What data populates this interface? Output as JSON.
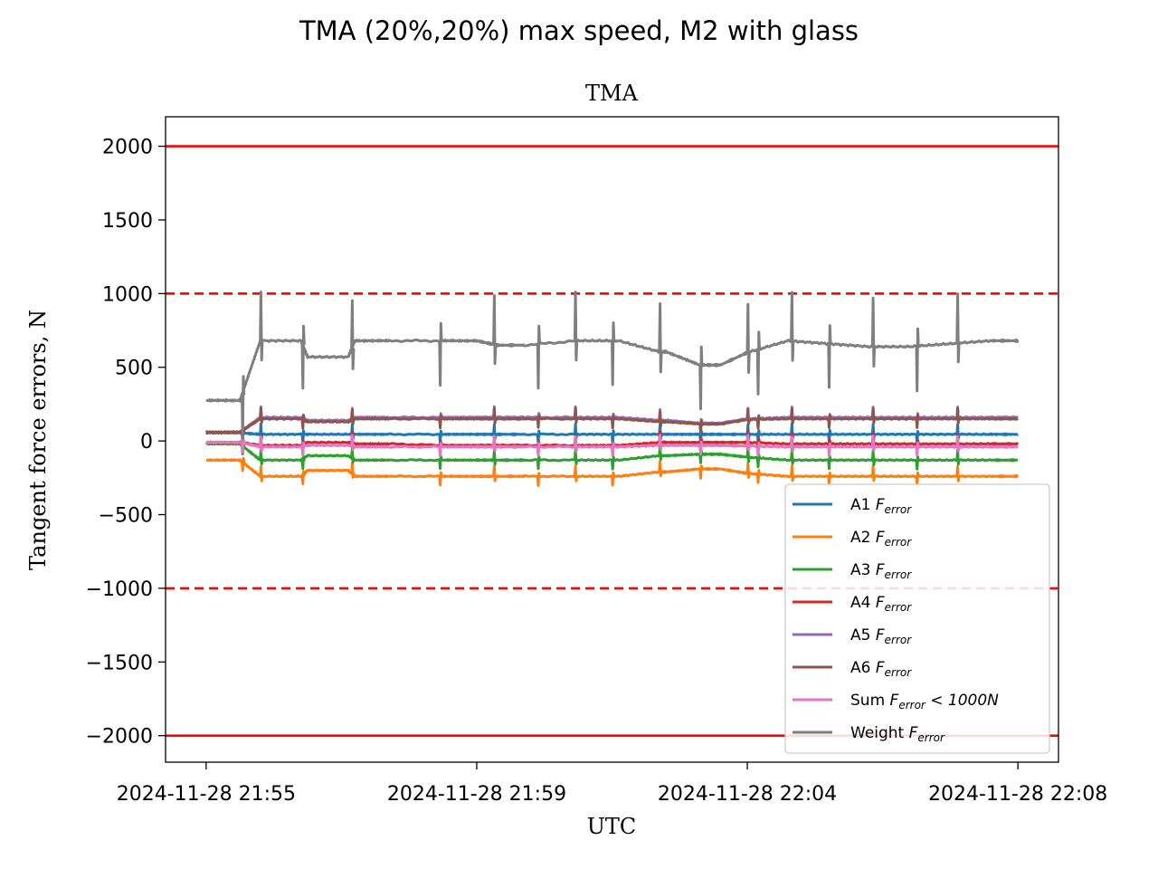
{
  "chart_data": {
    "type": "line",
    "suptitle": "TMA (20%,20%) max speed, M2 with glass",
    "title": "TMA",
    "xlabel": "UTC",
    "ylabel": "Tangent force errors, N",
    "ylim": [
      -2180,
      2200
    ],
    "xlim_minutes": [
      -0.6,
      12.6
    ],
    "yticks": [
      2000,
      1500,
      1000,
      500,
      0,
      -500,
      -1000,
      -1500,
      -2000
    ],
    "ytick_labels": [
      "2000",
      "1500",
      "1000",
      "500",
      "0",
      "−500",
      "−1000",
      "−1500",
      "−2000"
    ],
    "xticks": [
      {
        "label": "2024-11-28 21:55",
        "minute": 0
      },
      {
        "label": "2024-11-28 21:59",
        "minute": 4
      },
      {
        "label": "2024-11-28 22:04",
        "minute": 8
      },
      {
        "label": "2024-11-28 22:08",
        "minute": 12
      }
    ],
    "grid": false,
    "legend_position": "lower right",
    "reference_lines": [
      {
        "y": 2000,
        "color": "#ff0000",
        "style": "solid"
      },
      {
        "y": -2000,
        "color": "#ff0000",
        "style": "solid"
      },
      {
        "y": 1000,
        "color": "#ff0000",
        "style": "dashed"
      },
      {
        "y": -1000,
        "color": "#ff0000",
        "style": "dashed"
      }
    ],
    "x_minutes": [
      0,
      0.5,
      0.8,
      1.4,
      1.5,
      2.1,
      2.2,
      2.7,
      3.5,
      4.0,
      4.3,
      4.7,
      5.5,
      6.1,
      6.7,
      6.8,
      7.3,
      7.6,
      8.0,
      8.6,
      9.2,
      9.8,
      10.4,
      11.0,
      11.6,
      12.0
    ],
    "series": [
      {
        "name": "A1",
        "name_sub": "error",
        "color": "#1f77b4",
        "values": [
          55,
          55,
          45,
          45,
          45,
          45,
          45,
          45,
          45,
          45,
          45,
          45,
          45,
          45,
          45,
          45,
          45,
          45,
          45,
          45,
          45,
          45,
          45,
          45,
          45,
          45
        ]
      },
      {
        "name": "A2",
        "name_sub": "error",
        "color": "#ff7f0e",
        "values": [
          -130,
          -130,
          -240,
          -240,
          -200,
          -200,
          -240,
          -240,
          -240,
          -240,
          -240,
          -240,
          -240,
          -240,
          -210,
          -210,
          -190,
          -190,
          -220,
          -240,
          -240,
          -240,
          -240,
          -240,
          -240,
          -240
        ]
      },
      {
        "name": "A3",
        "name_sub": "error",
        "color": "#2ca02c",
        "values": [
          -20,
          -20,
          -130,
          -130,
          -100,
          -100,
          -130,
          -130,
          -130,
          -130,
          -130,
          -130,
          -130,
          -130,
          -100,
          -100,
          -90,
          -90,
          -110,
          -130,
          -130,
          -130,
          -130,
          -130,
          -130,
          -130
        ]
      },
      {
        "name": "A4",
        "name_sub": "error",
        "color": "#d62728",
        "values": [
          -10,
          -10,
          -30,
          -30,
          -10,
          -10,
          -20,
          -20,
          -30,
          -30,
          -30,
          -30,
          -30,
          -30,
          -10,
          -10,
          -10,
          -10,
          -10,
          -20,
          -20,
          -20,
          -20,
          -20,
          -20,
          -20
        ]
      },
      {
        "name": "A5",
        "name_sub": "error",
        "color": "#9467bd",
        "values": [
          60,
          60,
          160,
          160,
          140,
          140,
          160,
          160,
          160,
          160,
          160,
          160,
          160,
          160,
          140,
          140,
          120,
          120,
          150,
          160,
          160,
          160,
          160,
          160,
          160,
          160
        ]
      },
      {
        "name": "A6",
        "name_sub": "error",
        "color": "#8c564b",
        "values": [
          60,
          60,
          150,
          150,
          130,
          130,
          150,
          150,
          150,
          150,
          150,
          150,
          150,
          150,
          130,
          130,
          115,
          115,
          145,
          150,
          150,
          150,
          150,
          150,
          150,
          150
        ]
      },
      {
        "name": "Sum",
        "name_sub": "error",
        "name_suffix": "< 1000N",
        "color": "#e377c2",
        "values": [
          -10,
          -10,
          -40,
          -40,
          -30,
          -30,
          -40,
          -40,
          -40,
          -40,
          -40,
          -40,
          -40,
          -40,
          -30,
          -30,
          -30,
          -30,
          -35,
          -40,
          -40,
          -40,
          -40,
          -40,
          -40,
          -40
        ]
      },
      {
        "name": "Weight",
        "name_sub": "error",
        "color": "#7f7f7f",
        "values": [
          275,
          275,
          680,
          680,
          570,
          570,
          680,
          680,
          680,
          680,
          650,
          650,
          680,
          680,
          605,
          605,
          515,
          515,
          600,
          680,
          660,
          640,
          640,
          660,
          680,
          680
        ]
      }
    ],
    "step_minutes": [
      0.53,
      0.8,
      1.42,
      2.15,
      3.45,
      4.25,
      4.9,
      5.45,
      6.0,
      6.7,
      7.3,
      8.0,
      8.15,
      8.65,
      9.2,
      9.85,
      10.5,
      11.1
    ]
  }
}
